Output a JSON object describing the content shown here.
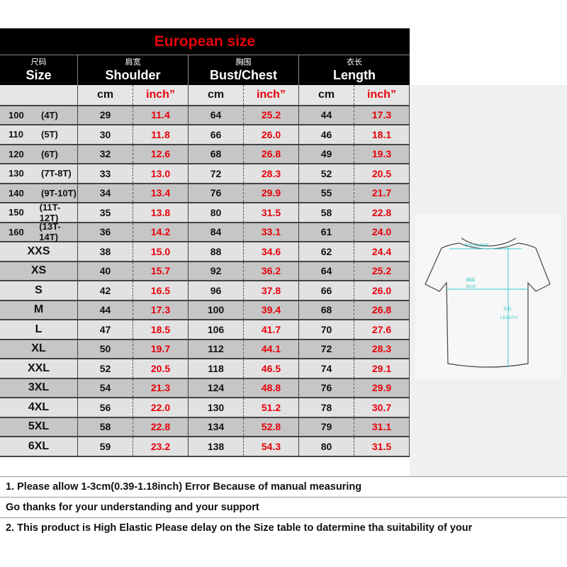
{
  "title": "European size",
  "headers": [
    {
      "zh": "尺码",
      "en": "Size"
    },
    {
      "zh": "肩宽",
      "en": "Shoulder"
    },
    {
      "zh": "胸围",
      "en": "Bust/Chest"
    },
    {
      "zh": "衣长",
      "en": "Length"
    }
  ],
  "units": {
    "cm": "cm",
    "inch": "inch”"
  },
  "rows": [
    {
      "size": "100",
      "kid": "(4T)",
      "v": [
        "29",
        "11.4",
        "64",
        "25.2",
        "44",
        "17.3"
      ]
    },
    {
      "size": "110",
      "kid": "(5T)",
      "v": [
        "30",
        "11.8",
        "66",
        "26.0",
        "46",
        "18.1"
      ]
    },
    {
      "size": "120",
      "kid": "(6T)",
      "v": [
        "32",
        "12.6",
        "68",
        "26.8",
        "49",
        "19.3"
      ]
    },
    {
      "size": "130",
      "kid": "(7T-8T)",
      "v": [
        "33",
        "13.0",
        "72",
        "28.3",
        "52",
        "20.5"
      ]
    },
    {
      "size": "140",
      "kid": "(9T-10T)",
      "v": [
        "34",
        "13.4",
        "76",
        "29.9",
        "55",
        "21.7"
      ]
    },
    {
      "size": "150",
      "kid": "(11T-12T)",
      "v": [
        "35",
        "13.8",
        "80",
        "31.5",
        "58",
        "22.8"
      ]
    },
    {
      "size": "160",
      "kid": "(13T-14T)",
      "v": [
        "36",
        "14.2",
        "84",
        "33.1",
        "61",
        "24.0"
      ]
    },
    {
      "size": "XXS",
      "v": [
        "38",
        "15.0",
        "88",
        "34.6",
        "62",
        "24.4"
      ]
    },
    {
      "size": "XS",
      "v": [
        "40",
        "15.7",
        "92",
        "36.2",
        "64",
        "25.2"
      ]
    },
    {
      "size": "S",
      "v": [
        "42",
        "16.5",
        "96",
        "37.8",
        "66",
        "26.0"
      ]
    },
    {
      "size": "M",
      "v": [
        "44",
        "17.3",
        "100",
        "39.4",
        "68",
        "26.8"
      ]
    },
    {
      "size": "L",
      "v": [
        "47",
        "18.5",
        "106",
        "41.7",
        "70",
        "27.6"
      ]
    },
    {
      "size": "XL",
      "v": [
        "50",
        "19.7",
        "112",
        "44.1",
        "72",
        "28.3"
      ]
    },
    {
      "size": "XXL",
      "v": [
        "52",
        "20.5",
        "118",
        "46.5",
        "74",
        "29.1"
      ]
    },
    {
      "size": "3XL",
      "v": [
        "54",
        "21.3",
        "124",
        "48.8",
        "76",
        "29.9"
      ]
    },
    {
      "size": "4XL",
      "v": [
        "56",
        "22.0",
        "130",
        "51.2",
        "78",
        "30.7"
      ]
    },
    {
      "size": "5XL",
      "v": [
        "58",
        "22.8",
        "134",
        "52.8",
        "79",
        "31.1"
      ]
    },
    {
      "size": "6XL",
      "v": [
        "59",
        "23.2",
        "138",
        "54.3",
        "80",
        "31.5"
      ]
    }
  ],
  "diagram": {
    "shoulder_zh": "肩宽",
    "shoulder": "SHOULDER",
    "bust_zh": "胸围",
    "bust": "Bust",
    "length_zh": "衣长",
    "length": "LENGTH",
    "line_color": "#3cc8c8"
  },
  "notes": [
    "1. Please allow 1-3cm(0.39-1.18inch) Error Because of manual measuring",
    "Go thanks for your understanding and your support",
    "2. This product is High Elastic  Please delay on the Size table to datermine tha suitability of your"
  ],
  "colors": {
    "accent_red": "#e8000a",
    "header_bg": "#000000",
    "row_dark": "#c6c6c6",
    "row_light": "#e2e2e2"
  }
}
